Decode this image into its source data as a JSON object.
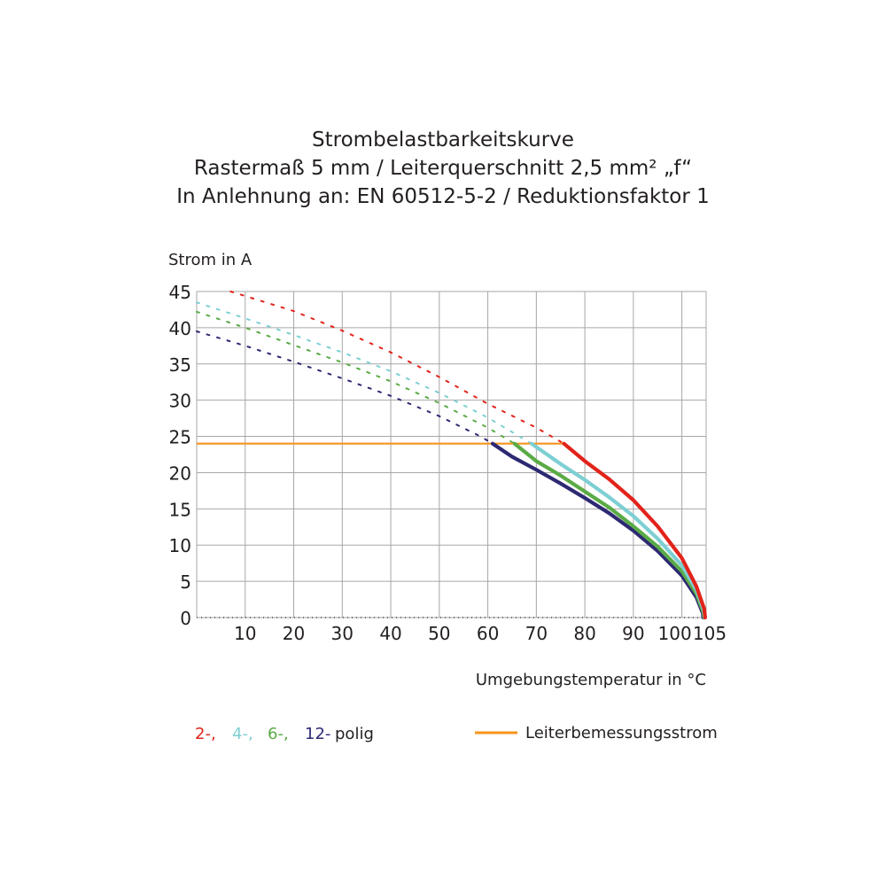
{
  "chart_data": {
    "type": "line",
    "title_lines": [
      "Strombelastbarkeitskurve",
      "Rastermaß 5 mm / Leiterquerschnitt 2,5 mm² „f“",
      "In Anlehnung an: EN 60512-5-2 / Reduktionsfaktor 1"
    ],
    "ylabel": "Strom in A",
    "xlabel": "Umgebungstemperatur in  °C",
    "xlim": [
      0,
      105
    ],
    "ylim": [
      0,
      45
    ],
    "x_ticks": [
      10,
      20,
      30,
      40,
      50,
      60,
      70,
      80,
      90,
      100,
      105
    ],
    "x_tick_labels": [
      "10",
      "20",
      "30",
      "40",
      "50",
      "60",
      "70",
      "80",
      "90",
      "100",
      "105"
    ],
    "y_ticks": [
      0,
      5,
      10,
      15,
      20,
      25,
      30,
      35,
      40,
      45
    ],
    "y_tick_labels": [
      "0",
      "5",
      "10",
      "15",
      "20",
      "25",
      "30",
      "35",
      "40",
      "45"
    ],
    "grid": true,
    "series": [
      {
        "name": "2-",
        "color": "#e2231a",
        "dashed_values": [
          [
            7,
            45
          ],
          [
            20,
            42.3
          ],
          [
            30,
            39.6
          ],
          [
            40,
            36.6
          ],
          [
            50,
            33.2
          ],
          [
            60,
            29.5
          ],
          [
            70,
            26.2
          ],
          [
            75.7,
            24
          ]
        ],
        "solid_values": [
          [
            75.7,
            24
          ],
          [
            80,
            21.6
          ],
          [
            85,
            19.1
          ],
          [
            90,
            16.2
          ],
          [
            95,
            12.6
          ],
          [
            100,
            8.2
          ],
          [
            103,
            4.3
          ],
          [
            104.6,
            1.2
          ],
          [
            104.8,
            0
          ]
        ]
      },
      {
        "name": "4-",
        "color": "#7dcfd3",
        "dashed_values": [
          [
            0,
            43.5
          ],
          [
            10,
            41.3
          ],
          [
            20,
            39
          ],
          [
            30,
            36.6
          ],
          [
            40,
            34
          ],
          [
            50,
            31
          ],
          [
            60,
            27.6
          ],
          [
            69,
            24
          ]
        ],
        "solid_values": [
          [
            69,
            24
          ],
          [
            75,
            21.2
          ],
          [
            80,
            19
          ],
          [
            85,
            16.6
          ],
          [
            90,
            14
          ],
          [
            95,
            10.9
          ],
          [
            100,
            7.2
          ],
          [
            103,
            3.8
          ],
          [
            104.5,
            1
          ],
          [
            104.7,
            0
          ]
        ]
      },
      {
        "name": "6-",
        "color": "#5aab46",
        "dashed_values": [
          [
            0,
            42.2
          ],
          [
            10,
            40
          ],
          [
            20,
            37.6
          ],
          [
            30,
            35.2
          ],
          [
            40,
            32.6
          ],
          [
            50,
            29.6
          ],
          [
            60,
            26.2
          ],
          [
            65.5,
            24
          ]
        ],
        "solid_values": [
          [
            65.5,
            24
          ],
          [
            70,
            21.6
          ],
          [
            75,
            19.6
          ],
          [
            80,
            17.4
          ],
          [
            85,
            15.2
          ],
          [
            90,
            12.6
          ],
          [
            95,
            9.8
          ],
          [
            100,
            6.4
          ],
          [
            103,
            3.3
          ],
          [
            104.4,
            0.8
          ],
          [
            104.6,
            0
          ]
        ]
      },
      {
        "name": "12-",
        "color": "#2d2a73",
        "dashed_values": [
          [
            0,
            39.5
          ],
          [
            10,
            37.5
          ],
          [
            20,
            35.3
          ],
          [
            30,
            33
          ],
          [
            40,
            30.6
          ],
          [
            50,
            27.8
          ],
          [
            58.5,
            25
          ],
          [
            61,
            24
          ]
        ],
        "solid_values": [
          [
            61,
            24
          ],
          [
            65,
            22.2
          ],
          [
            70,
            20.4
          ],
          [
            75,
            18.5
          ],
          [
            80,
            16.5
          ],
          [
            85,
            14.4
          ],
          [
            90,
            12
          ],
          [
            95,
            9.2
          ],
          [
            100,
            5.8
          ],
          [
            103,
            2.8
          ],
          [
            104.3,
            0.6
          ],
          [
            104.4,
            0
          ]
        ]
      },
      {
        "name": "Leiterbemessungsstrom",
        "color": "#f7941d",
        "solid_values": [
          [
            0,
            24
          ],
          [
            75.7,
            24
          ]
        ]
      }
    ],
    "legend_left": {
      "labels": [
        "2-,",
        "4-,",
        "6-,",
        "12-"
      ],
      "colors": [
        "#e2231a",
        "#7dcfd3",
        "#5aab46",
        "#2d2a73"
      ],
      "suffix": "polig"
    },
    "legend_right": {
      "label": "Leiterbemessungsstrom",
      "color": "#f7941d"
    }
  }
}
